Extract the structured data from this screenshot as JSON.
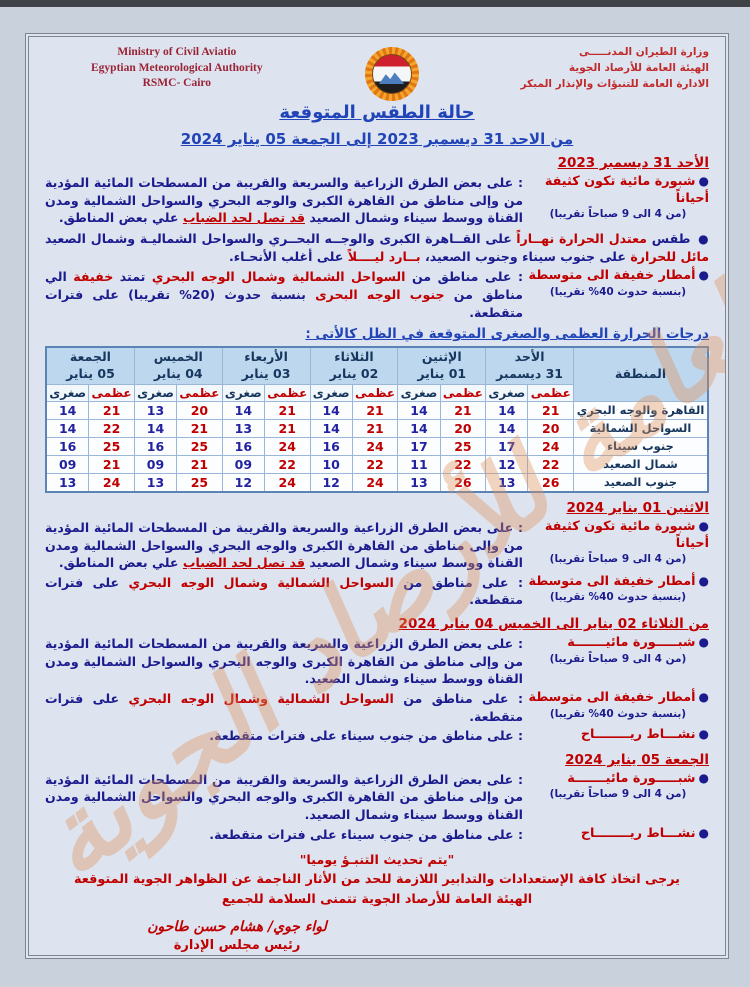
{
  "colors": {
    "accent_red": "#c00000",
    "body_blue": "#1b1b8e",
    "title_blue": "#2144b8",
    "table_header_bg": "#bdd7ee",
    "page_bg": "#dde4f0",
    "watermark_orange": "#e0935b",
    "maroon_en": "#9b2335"
  },
  "page": {
    "header": {
      "left_en": [
        "Ministry of Civil Aviatio",
        "Egyptian Meteorological Authority",
        "RSMC- Cairo"
      ],
      "right_ar": [
        "وزارة الطيران المدنـــــى",
        "الهيئة العامة للأرصاد الجوية",
        "الادارة العامة للتنبؤات والإنذار المبكر"
      ],
      "logo_icon": "egyptian-meteorological-authority-emblem"
    },
    "title": "حالة الطقس المتوقعة",
    "date_range": "من الاحد 31 ديسمبر 2023  إلى  الجمعة 05 يناير 2024"
  },
  "watermark": "الهيئة العامة للأرصاد الجوية",
  "temps_title": "درجات الحرارة العظمى والصغرى المتوقعة في الظل كالأتى :",
  "table": {
    "region_header": "المنطقة",
    "max_label": "عظمى",
    "min_label": "صغرى",
    "days": [
      {
        "name": "الأحد",
        "date": "31 ديسمبر"
      },
      {
        "name": "الإثنين",
        "date": "01 يناير"
      },
      {
        "name": "الثلاثاء",
        "date": "02 يناير"
      },
      {
        "name": "الأربعاء",
        "date": "03 يناير"
      },
      {
        "name": "الخميس",
        "date": "04 يناير"
      },
      {
        "name": "الجمعة",
        "date": "05 يناير"
      }
    ],
    "rows": [
      {
        "region": "القاهرة والوجه البحري",
        "temps": [
          [
            "21",
            "14"
          ],
          [
            "21",
            "14"
          ],
          [
            "21",
            "14"
          ],
          [
            "21",
            "14"
          ],
          [
            "20",
            "13"
          ],
          [
            "21",
            "14"
          ]
        ]
      },
      {
        "region": "السواحل الشمالية",
        "temps": [
          [
            "20",
            "14"
          ],
          [
            "20",
            "14"
          ],
          [
            "21",
            "14"
          ],
          [
            "21",
            "13"
          ],
          [
            "21",
            "14"
          ],
          [
            "22",
            "14"
          ]
        ]
      },
      {
        "region": "جنوب سيناء",
        "temps": [
          [
            "24",
            "17"
          ],
          [
            "25",
            "17"
          ],
          [
            "24",
            "16"
          ],
          [
            "24",
            "16"
          ],
          [
            "25",
            "16"
          ],
          [
            "25",
            "16"
          ]
        ]
      },
      {
        "region": "شمال الصعيد",
        "temps": [
          [
            "22",
            "12"
          ],
          [
            "22",
            "11"
          ],
          [
            "22",
            "10"
          ],
          [
            "22",
            "09"
          ],
          [
            "21",
            "09"
          ],
          [
            "21",
            "09"
          ]
        ]
      },
      {
        "region": "جنوب الصعيد",
        "temps": [
          [
            "26",
            "13"
          ],
          [
            "26",
            "13"
          ],
          [
            "24",
            "12"
          ],
          [
            "24",
            "12"
          ],
          [
            "25",
            "13"
          ],
          [
            "24",
            "13"
          ]
        ]
      }
    ]
  },
  "sections": [
    {
      "header": "الأحد 31 ديسمبر 2023",
      "bullets": [
        {
          "label": "شبورة مائية تكون كثيفة أحياناً",
          "note": "(من 4 الى 9 صباحاً تقريبا)",
          "desc": [
            {
              "t": ": على بعض الطرق الزراعية والسريعة والقريبة من المسطحات المائية المؤدية من وإلى مناطق من القاهرة الكبرى والوجه البحري والسواحل الشمالية ومدن القناة ووسط سيناء وشمال الصعيد ",
              "c": "b"
            },
            {
              "t": "قد تصل لحد الضباب",
              "c": "ru"
            },
            {
              "t": " علي بعض المناطق.",
              "c": "b"
            }
          ]
        },
        {
          "label": null,
          "note": null,
          "desc": [
            {
              "t": "طقس ",
              "c": "b"
            },
            {
              "t": "معتدل الحرارة نهــاراً",
              "c": "r"
            },
            {
              "t": " على القــاهرة الكبرى والوجــه البحــري والسواحل الشماليـة وشمال الصعيد ",
              "c": "b"
            },
            {
              "t": "مائل للحرارة",
              "c": "r"
            },
            {
              "t": " على جنوب سيناء وجنوب الصعيد، ",
              "c": "b"
            },
            {
              "t": "بــارد ليــــلاً",
              "c": "r"
            },
            {
              "t": " على أغلب الأنحـاء.",
              "c": "b"
            }
          ]
        },
        {
          "label": "أمطار خفيفة الى متوسطة",
          "note": "(بنسبة حدوث 40% تقريبا)",
          "desc": [
            {
              "t": ": على مناطق من ",
              "c": "b"
            },
            {
              "t": "السواحل الشمالية وشمال الوجه البحري",
              "c": "r"
            },
            {
              "t": " تمتد ",
              "c": "b"
            },
            {
              "t": "خفيفة",
              "c": "r"
            },
            {
              "t": " الي مناطق من ",
              "c": "b"
            },
            {
              "t": "جنوب الوجه البحرى",
              "c": "r"
            },
            {
              "t": " بنسبة حدوث (20% تقريبا) على فترات متقطعة.",
              "c": "b"
            }
          ]
        }
      ]
    },
    {
      "header": "الاثنين 01 يناير 2024",
      "bullets": [
        {
          "label": "شبورة مائية تكون كثيفة أحياناً",
          "note": "(من 4 الى 9 صباحاً تقريبا)",
          "desc": [
            {
              "t": ": على بعض الطرق الزراعية والسريعة والقريبة من المسطحات المائية المؤدية من وإلى مناطق من القاهرة الكبرى والوجه البحري والسواحل الشمالية ومدن القناة ووسط سيناء وشمال الصعيد ",
              "c": "b"
            },
            {
              "t": "قد تصل لحد الضباب",
              "c": "ru"
            },
            {
              "t": " علي بعض المناطق.",
              "c": "b"
            }
          ]
        },
        {
          "label": "أمطار خفيفة الى متوسطة",
          "note": "(بنسبة حدوث 40% تقريبا)",
          "desc": [
            {
              "t": ": على مناطق من ",
              "c": "b"
            },
            {
              "t": "السواحل الشمالية وشمال الوجه البحري",
              "c": "r"
            },
            {
              "t": " على فترات متقطعة.",
              "c": "b"
            }
          ]
        }
      ]
    },
    {
      "header": "من الثلاثاء 02  يناير الى الخميس 04 يناير 2024",
      "bullets": [
        {
          "label": "شبـــــورة مائيـــــــة",
          "note": "(من 4 الى 9 صباحاً تقريبا)",
          "desc": [
            {
              "t": ": على بعض الطرق الزراعية والسريعة والقريبة من المسطحات المائية المؤدية من وإلى مناطق من القاهرة الكبرى والوجه البحري والسواحل الشمالية ومدن القناة ووسط سيناء وشمال الصعيد.",
              "c": "b"
            }
          ]
        },
        {
          "label": "أمطار خفيفة الى متوسطة",
          "note": "(بنسبة حدوث 40% تقريبا)",
          "desc": [
            {
              "t": ": على مناطق من ",
              "c": "b"
            },
            {
              "t": "السواحل الشمالية وشمال الوجه البحري",
              "c": "r"
            },
            {
              "t": " على فترات متقطعة.",
              "c": "b"
            }
          ]
        },
        {
          "label": "نشـــاط ريــــــــاح",
          "note": null,
          "desc": [
            {
              "t": ": على مناطق من جنوب سيناء على فترات متقطعة.",
              "c": "b"
            }
          ]
        }
      ]
    },
    {
      "header": "الجمعة 05 يناير 2024",
      "bullets": [
        {
          "label": "شبـــــورة مائيـــــــة",
          "note": "(من 4 الى 9 صباحاً تقريبا)",
          "desc": [
            {
              "t": ": على بعض الطرق الزراعية والسريعة والقريبة من المسطحات المائية المؤدية من وإلى مناطق من القاهرة الكبرى والوجه البحري والسواحل الشمالية ومدن القناة ووسط سيناء وشمال الصعيد.",
              "c": "b"
            }
          ]
        },
        {
          "label": "نشـــاط ريــــــــاح",
          "note": null,
          "desc": [
            {
              "t": ": على مناطق من جنوب سيناء على فترات متقطعة.",
              "c": "b"
            }
          ]
        }
      ]
    }
  ],
  "footer": {
    "update_note": "\"يتم تحديث التنبـؤ يوميا\"",
    "advice": "يرجى اتخاذ كافة الإستعدادات والتدابير اللازمة للحد من الأثار الناجمة عن الظواهر الجوية المتوقعة",
    "wish": "الهيئة العامة للأرصاد الجوية تتمنى السلامة للجميع",
    "signature_name": "لواء جوي/ هشام حسن طاحون",
    "signature_title": "رئيس مجلس الإدارة"
  }
}
